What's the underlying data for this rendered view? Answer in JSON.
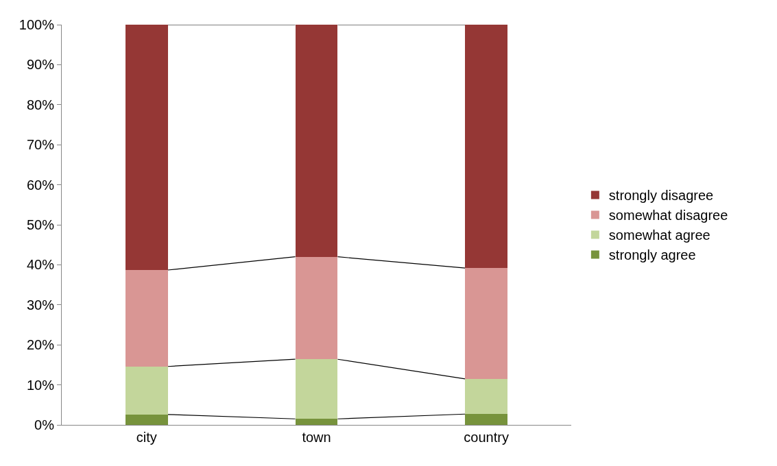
{
  "chart_data": {
    "type": "bar",
    "stacked": true,
    "categories": [
      "city",
      "town",
      "country"
    ],
    "series": [
      {
        "name": "strongly agree",
        "color": "#77933c",
        "values": [
          2.6,
          1.5,
          2.7
        ]
      },
      {
        "name": "somewhat agree",
        "color": "#c3d69b",
        "values": [
          12.0,
          14.9,
          8.8
        ]
      },
      {
        "name": "somewhat disagree",
        "color": "#d99694",
        "values": [
          24.1,
          25.6,
          27.7
        ]
      },
      {
        "name": "strongly disagree",
        "color": "#953735",
        "values": [
          61.3,
          58.0,
          60.8
        ]
      }
    ],
    "ylim": [
      0,
      100
    ],
    "yticks": [
      {
        "value": 0,
        "label": "0%"
      },
      {
        "value": 10,
        "label": "10%"
      },
      {
        "value": 20,
        "label": "20%"
      },
      {
        "value": 30,
        "label": "30%"
      },
      {
        "value": 40,
        "label": "40%"
      },
      {
        "value": 50,
        "label": "50%"
      },
      {
        "value": 60,
        "label": "60%"
      },
      {
        "value": 70,
        "label": "70%"
      },
      {
        "value": 80,
        "label": "80%"
      },
      {
        "value": 90,
        "label": "90%"
      },
      {
        "value": 100,
        "label": "100%"
      }
    ],
    "grid": false,
    "legend": "right"
  }
}
